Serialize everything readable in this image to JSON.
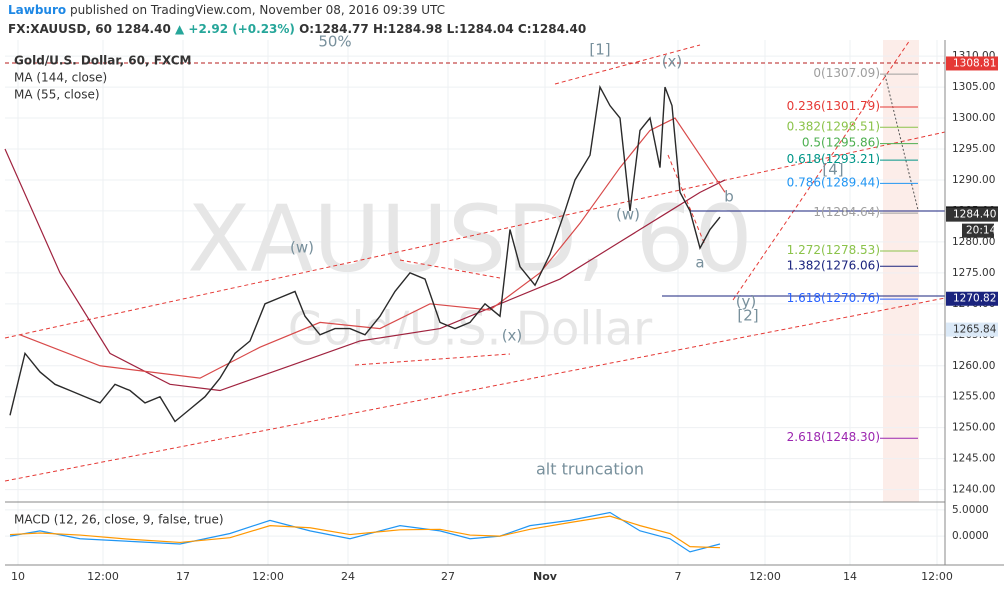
{
  "header": {
    "author": "Lawburo",
    "published": "published on TradingView.com, November 08, 2016 09:39 UTC",
    "symbol": "FX:XAUUSD, 60",
    "last": "1284.40",
    "change": "+2.92 (+0.23%)",
    "open": "O:1284.77",
    "high": "H:1284.98",
    "low": "L:1284.04",
    "close": "C:1284.40"
  },
  "chart_data": [
    {
      "type": "line",
      "title": "Gold/U.S. Dollar, 60, FXCM",
      "watermark": "XAUUSD, 60",
      "watermark_sub": "Gold/U.S. Dollar",
      "x": [
        5,
        20,
        35,
        50,
        65,
        80,
        95,
        110,
        125,
        140,
        155,
        170,
        185,
        200,
        215,
        230,
        245,
        260,
        275,
        290,
        300,
        315,
        330,
        345,
        360,
        375,
        390,
        405,
        420,
        435,
        450,
        465,
        480,
        495,
        505,
        515,
        530,
        545,
        560,
        570,
        585,
        595,
        605,
        615,
        625,
        635,
        645,
        655,
        660,
        667,
        675,
        685,
        695,
        705,
        715
      ],
      "series": [
        {
          "name": "Gold/U.S. Dollar",
          "color": "#2a2a2a",
          "values": [
            1252,
            1262,
            1259,
            1257,
            1256,
            1255,
            1254,
            1257,
            1256,
            1254,
            1255,
            1251,
            1253,
            1255,
            1258,
            1262,
            1264,
            1270,
            1271,
            1272,
            1268,
            1265,
            1266,
            1266,
            1265,
            1268,
            1272,
            1275,
            1274,
            1267,
            1266,
            1267,
            1270,
            1268,
            1282,
            1276,
            1273,
            1278,
            1285,
            1290,
            1294,
            1305,
            1302,
            1300,
            1285,
            1298,
            1300,
            1292,
            1305,
            1302,
            1288,
            1285,
            1279,
            1282,
            1284
          ]
        }
      ],
      "ma": [
        {
          "name": "MA (144, close)",
          "color": "#a0233f",
          "x": [
            0,
            55,
            105,
            165,
            215,
            285,
            355,
            435,
            495,
            555,
            615,
            665,
            695,
            720
          ],
          "values": [
            1295,
            1275,
            1262,
            1257,
            1256,
            1260,
            1264,
            1266,
            1270,
            1274,
            1280,
            1285,
            1288,
            1290
          ]
        },
        {
          "name": "MA (55, close)",
          "color": "#d84a4a",
          "x": [
            15,
            95,
            195,
            255,
            315,
            375,
            425,
            485,
            535,
            575,
            615,
            645,
            670,
            695,
            720
          ],
          "values": [
            1265,
            1260,
            1258,
            1263,
            1267,
            1266,
            1270,
            1269,
            1275,
            1283,
            1292,
            1298,
            1300,
            1294,
            1288
          ]
        }
      ],
      "fib_levels": [
        {
          "label": "0(1307.09)",
          "value": 1307.09,
          "color": "#9e9e9e"
        },
        {
          "label": "0.236(1301.79)",
          "value": 1301.79,
          "color": "#e53935"
        },
        {
          "label": "0.382(1298.51)",
          "value": 1298.51,
          "color": "#8bc34a"
        },
        {
          "label": "0.5(1295.86)",
          "value": 1295.86,
          "color": "#4caf50"
        },
        {
          "label": "0.618(1293.21)",
          "value": 1293.21,
          "color": "#009688"
        },
        {
          "label": "0.786(1289.44)",
          "value": 1289.44,
          "color": "#2196f3"
        },
        {
          "label": "1(1284.64)",
          "value": 1284.64,
          "color": "#9e9e9e"
        },
        {
          "label": "1.272(1278.53)",
          "value": 1278.53,
          "color": "#8bc34a"
        },
        {
          "label": "1.382(1276.06)",
          "value": 1276.06,
          "color": "#1a237e"
        },
        {
          "label": "1.618(1270.76)",
          "value": 1270.76,
          "color": "#2962ff"
        },
        {
          "label": "2.618(1248.30)",
          "value": 1248.3,
          "color": "#9c27b0"
        }
      ],
      "price_labels": [
        {
          "value": 1308.81,
          "color": "#e53935"
        },
        {
          "value": 1284.6,
          "label": "1284.60",
          "color": "#111111"
        },
        {
          "value": 1284.4,
          "label": "1284.40",
          "color": "#333333"
        },
        {
          "value": 1270.82,
          "color": "#1a237e"
        },
        {
          "value": 1265.84,
          "color": "#dbe9f7"
        }
      ],
      "countdown": "20:14",
      "annotations": [
        "50%",
        "[1]",
        "(x)",
        "(w)",
        "(w)",
        "(x)",
        "[4]",
        "b",
        "a",
        "(y)",
        "[2]",
        "alt truncation"
      ],
      "xlim": [
        0,
        940
      ],
      "ylim": [
        1238,
        1312.6
      ],
      "xticks": [
        {
          "value": 13,
          "label": "10"
        },
        {
          "value": 98,
          "label": "12:00"
        },
        {
          "value": 178,
          "label": "17"
        },
        {
          "value": 263,
          "label": "12:00"
        },
        {
          "value": 343,
          "label": "24"
        },
        {
          "value": 443,
          "label": "27"
        },
        {
          "value": 540,
          "label": "Nov"
        },
        {
          "value": 673,
          "label": "7"
        },
        {
          "value": 760,
          "label": "12:00"
        },
        {
          "value": 845,
          "label": "14"
        },
        {
          "value": 932,
          "label": "12:00"
        }
      ],
      "yticks": [
        {
          "value": 1240,
          "label": "1240.00"
        },
        {
          "value": 1245,
          "label": "1245.00"
        },
        {
          "value": 1250,
          "label": "1250.00"
        },
        {
          "value": 1255,
          "label": "1255.00"
        },
        {
          "value": 1260,
          "label": "1260.00"
        },
        {
          "value": 1265,
          "label": "1265.00"
        },
        {
          "value": 1270,
          "label": "1270.00"
        },
        {
          "value": 1275,
          "label": "1275.00"
        },
        {
          "value": 1280,
          "label": "1280.00"
        },
        {
          "value": 1285,
          "label": "1285.00"
        },
        {
          "value": 1290,
          "label": "1290.00"
        },
        {
          "value": 1295,
          "label": "1295.00"
        },
        {
          "value": 1300,
          "label": "1300.00"
        },
        {
          "value": 1305,
          "label": "1305.00"
        },
        {
          "value": 1310,
          "label": "1310.00"
        }
      ],
      "grid": true
    },
    {
      "type": "line",
      "title": "MACD (12, 26, close, 9, false, true)",
      "x": [
        5,
        35,
        75,
        125,
        175,
        225,
        265,
        305,
        345,
        395,
        435,
        465,
        495,
        525,
        565,
        605,
        635,
        665,
        685,
        715
      ],
      "series": [
        {
          "name": "MACD",
          "color": "#2196f3",
          "values": [
            0,
            1,
            -0.5,
            -1,
            -1.5,
            0.5,
            3,
            1,
            -0.5,
            2,
            1,
            -0.5,
            0,
            2,
            3,
            4.5,
            1,
            -0.5,
            -3,
            -1.5
          ]
        },
        {
          "name": "Signal",
          "color": "#ff9800",
          "values": [
            0.3,
            0.6,
            0.2,
            -0.6,
            -1.2,
            -0.3,
            2,
            1.6,
            0.3,
            1.2,
            1.3,
            0.2,
            0,
            1.3,
            2.6,
            3.8,
            2,
            0.5,
            -2,
            -2.2
          ]
        }
      ],
      "xlim": [
        0,
        940
      ],
      "ylim": [
        -5.5,
        6.5
      ],
      "yticks": [
        {
          "value": 0,
          "label": "0.0000"
        },
        {
          "value": 5,
          "label": "5.0000"
        }
      ],
      "grid": true
    }
  ]
}
